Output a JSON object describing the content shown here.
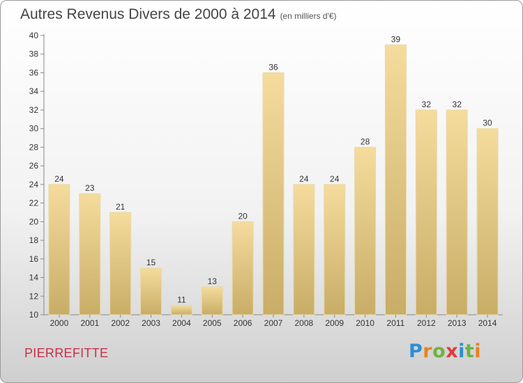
{
  "title": "Autres Revenus Divers de 2000 à 2014",
  "subtitle": "(en milliers d'€)",
  "location": "PIERREFITTE",
  "logo": {
    "letters": [
      "P",
      "r",
      "o",
      "x",
      "i",
      "t",
      "i"
    ],
    "colors": [
      "#2d8fd3",
      "#e8821e",
      "#6cb33f",
      "#e03a3e",
      "#2d8fd3",
      "#6cb33f",
      "#e8821e"
    ]
  },
  "colors": {
    "bar_top": "#f5dc9d",
    "bar_bottom": "#c8ad67",
    "title": "#444444",
    "location": "#c8304a"
  },
  "chart_data": {
    "type": "bar",
    "categories": [
      "2000",
      "2001",
      "2002",
      "2003",
      "2004",
      "2005",
      "2006",
      "2007",
      "2008",
      "2009",
      "2010",
      "2011",
      "2012",
      "2013",
      "2014"
    ],
    "values": [
      24,
      23,
      21,
      15,
      11,
      13,
      20,
      36,
      24,
      24,
      28,
      39,
      32,
      32,
      30
    ],
    "ylim": [
      10,
      40
    ],
    "yticks": [
      10,
      12,
      14,
      16,
      18,
      20,
      22,
      24,
      26,
      28,
      30,
      32,
      34,
      36,
      38,
      40
    ],
    "grid": false
  }
}
